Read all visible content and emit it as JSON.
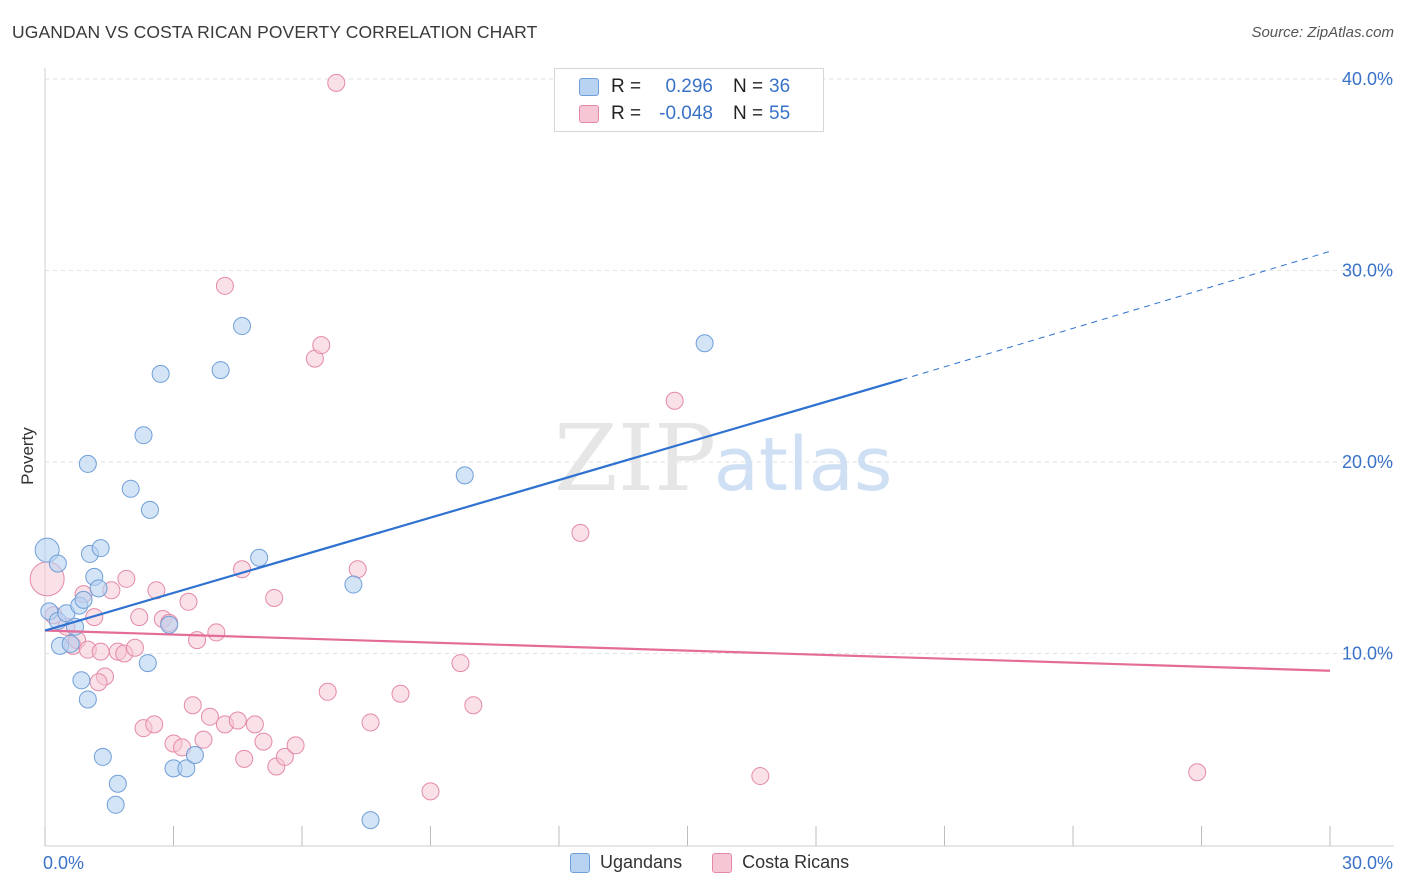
{
  "title": "UGANDAN VS COSTA RICAN POVERTY CORRELATION CHART",
  "source": "Source: ZipAtlas.com",
  "watermark": {
    "zip": "ZIP",
    "atlas": "atlas"
  },
  "legend": {
    "rows": [
      {
        "r_label": "R =",
        "r_value": "0.296",
        "n_label": "N =",
        "n_value": "36"
      },
      {
        "r_label": "R =",
        "r_value": "-0.048",
        "n_label": "N =",
        "n_value": "55"
      }
    ]
  },
  "bottom_legend": {
    "ugandans": "Ugandans",
    "costa_ricans": "Costa Ricans"
  },
  "colors": {
    "ugandan_fill": "#b8d2f2",
    "ugandan_stroke": "#6f9fd8",
    "ugandan_line": "#2f72d0",
    "costa_fill": "#f6c6d4",
    "costa_stroke": "#e48aa8",
    "costa_line": "#e46c98",
    "axis_text": "#3a72c8",
    "grid": "#e2e2e2"
  },
  "chart_data": {
    "type": "scatter",
    "title": "UGANDAN VS COSTA RICAN POVERTY CORRELATION CHART",
    "xlabel": "",
    "ylabel": "Poverty",
    "xlim": [
      0,
      30
    ],
    "ylim": [
      0,
      40
    ],
    "x_tick_labels": [
      "0.0%",
      "30.0%"
    ],
    "y_ticks": [
      10,
      20,
      30,
      40
    ],
    "y_tick_labels": [
      "10.0%",
      "20.0%",
      "30.0%",
      "40.0%"
    ],
    "series": [
      {
        "name": "Ugandans",
        "r": 0.296,
        "n": 36,
        "trend": {
          "x0": 0,
          "y0": 11.2,
          "x1": 20,
          "y1": 24.3,
          "dashed_to_x": 30,
          "dashed_to_y": 31.0
        },
        "points": [
          {
            "x": 0.05,
            "y": 15.4,
            "big": true
          },
          {
            "x": 0.3,
            "y": 14.7
          },
          {
            "x": 0.1,
            "y": 12.2
          },
          {
            "x": 0.3,
            "y": 11.7
          },
          {
            "x": 0.5,
            "y": 12.1
          },
          {
            "x": 0.35,
            "y": 10.4
          },
          {
            "x": 0.6,
            "y": 10.5
          },
          {
            "x": 0.8,
            "y": 12.5
          },
          {
            "x": 0.7,
            "y": 11.4
          },
          {
            "x": 0.9,
            "y": 12.8
          },
          {
            "x": 1.0,
            "y": 19.9
          },
          {
            "x": 1.05,
            "y": 15.2
          },
          {
            "x": 1.15,
            "y": 14.0
          },
          {
            "x": 1.25,
            "y": 13.4
          },
          {
            "x": 1.3,
            "y": 15.5
          },
          {
            "x": 0.85,
            "y": 8.6
          },
          {
            "x": 1.0,
            "y": 7.6
          },
          {
            "x": 1.35,
            "y": 4.6
          },
          {
            "x": 1.7,
            "y": 3.2
          },
          {
            "x": 1.65,
            "y": 2.1
          },
          {
            "x": 2.0,
            "y": 18.6
          },
          {
            "x": 2.3,
            "y": 21.4
          },
          {
            "x": 2.45,
            "y": 17.5
          },
          {
            "x": 2.7,
            "y": 24.6
          },
          {
            "x": 2.9,
            "y": 11.5
          },
          {
            "x": 2.4,
            "y": 9.5
          },
          {
            "x": 3.0,
            "y": 4.0
          },
          {
            "x": 3.3,
            "y": 4.0
          },
          {
            "x": 3.5,
            "y": 4.7
          },
          {
            "x": 4.1,
            "y": 24.8
          },
          {
            "x": 4.6,
            "y": 27.1
          },
          {
            "x": 5.0,
            "y": 15.0
          },
          {
            "x": 7.2,
            "y": 13.6
          },
          {
            "x": 9.8,
            "y": 19.3
          },
          {
            "x": 7.6,
            "y": 1.3
          },
          {
            "x": 15.4,
            "y": 26.2
          }
        ]
      },
      {
        "name": "Costa Ricans",
        "r": -0.048,
        "n": 55,
        "trend": {
          "x0": 0,
          "y0": 11.2,
          "x1": 30,
          "y1": 9.1
        },
        "points": [
          {
            "x": 0.05,
            "y": 13.9,
            "big": true
          },
          {
            "x": 0.2,
            "y": 12.0
          },
          {
            "x": 0.5,
            "y": 11.4
          },
          {
            "x": 0.65,
            "y": 10.4
          },
          {
            "x": 0.75,
            "y": 10.7
          },
          {
            "x": 0.9,
            "y": 13.1
          },
          {
            "x": 1.0,
            "y": 10.2
          },
          {
            "x": 1.15,
            "y": 11.9
          },
          {
            "x": 1.3,
            "y": 10.1
          },
          {
            "x": 1.4,
            "y": 8.8
          },
          {
            "x": 1.55,
            "y": 13.3
          },
          {
            "x": 1.7,
            "y": 10.1
          },
          {
            "x": 1.85,
            "y": 10.0
          },
          {
            "x": 1.9,
            "y": 13.9
          },
          {
            "x": 2.1,
            "y": 10.3
          },
          {
            "x": 2.2,
            "y": 11.9
          },
          {
            "x": 2.3,
            "y": 6.1
          },
          {
            "x": 2.55,
            "y": 6.3
          },
          {
            "x": 2.6,
            "y": 13.3
          },
          {
            "x": 2.75,
            "y": 11.8
          },
          {
            "x": 2.9,
            "y": 11.6
          },
          {
            "x": 3.0,
            "y": 5.3
          },
          {
            "x": 3.2,
            "y": 5.1
          },
          {
            "x": 3.35,
            "y": 12.7
          },
          {
            "x": 3.45,
            "y": 7.3
          },
          {
            "x": 3.55,
            "y": 10.7
          },
          {
            "x": 3.7,
            "y": 5.5
          },
          {
            "x": 3.85,
            "y": 6.7
          },
          {
            "x": 4.0,
            "y": 11.1
          },
          {
            "x": 4.2,
            "y": 29.2
          },
          {
            "x": 4.2,
            "y": 6.3
          },
          {
            "x": 4.5,
            "y": 6.5
          },
          {
            "x": 4.6,
            "y": 14.4
          },
          {
            "x": 4.65,
            "y": 4.5
          },
          {
            "x": 4.9,
            "y": 6.3
          },
          {
            "x": 5.1,
            "y": 5.4
          },
          {
            "x": 5.35,
            "y": 12.9
          },
          {
            "x": 5.4,
            "y": 4.1
          },
          {
            "x": 5.6,
            "y": 4.6
          },
          {
            "x": 5.85,
            "y": 5.2
          },
          {
            "x": 6.3,
            "y": 25.4
          },
          {
            "x": 6.45,
            "y": 26.1
          },
          {
            "x": 6.6,
            "y": 8.0
          },
          {
            "x": 6.8,
            "y": 39.8
          },
          {
            "x": 7.3,
            "y": 14.4
          },
          {
            "x": 7.6,
            "y": 6.4
          },
          {
            "x": 8.3,
            "y": 7.9
          },
          {
            "x": 9.0,
            "y": 2.8
          },
          {
            "x": 9.7,
            "y": 9.5
          },
          {
            "x": 10.0,
            "y": 7.3
          },
          {
            "x": 12.5,
            "y": 16.3
          },
          {
            "x": 14.7,
            "y": 23.2
          },
          {
            "x": 16.7,
            "y": 3.6
          },
          {
            "x": 26.9,
            "y": 3.8
          },
          {
            "x": 1.25,
            "y": 8.5
          }
        ]
      }
    ]
  }
}
